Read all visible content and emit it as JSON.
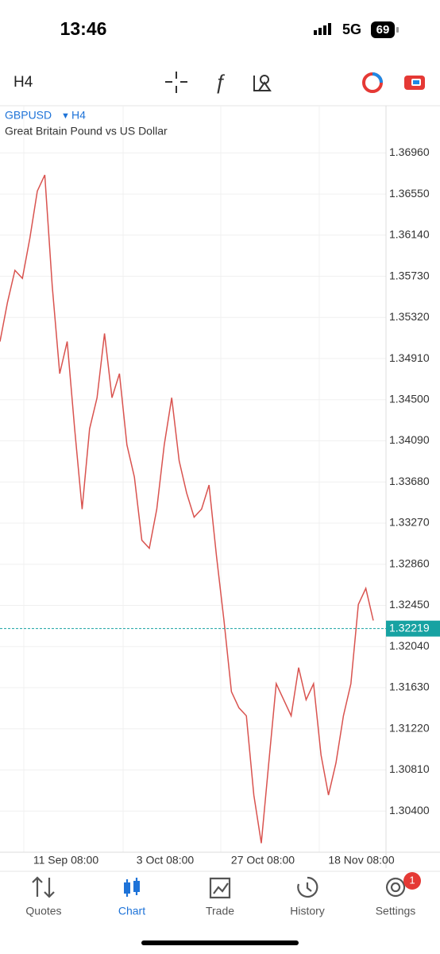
{
  "status_bar": {
    "time": "13:46",
    "network": "5G",
    "battery": "69"
  },
  "toolbar": {
    "timeframe": "H4"
  },
  "chart_data": {
    "type": "line",
    "title": "GBPUSD",
    "timeframe": "H4",
    "subtitle": "Great Britain Pound vs US Dollar",
    "values": [
      1.3508,
      1.3547,
      1.3579,
      1.3571,
      1.3611,
      1.3658,
      1.3674,
      1.3563,
      1.3476,
      1.3508,
      1.3421,
      1.3341,
      1.3421,
      1.3452,
      1.3516,
      1.3452,
      1.3476,
      1.3405,
      1.3373,
      1.331,
      1.3302,
      1.3341,
      1.3405,
      1.3452,
      1.3389,
      1.3357,
      1.3333,
      1.3341,
      1.3365,
      1.3294,
      1.323,
      1.3159,
      1.3143,
      1.3135,
      1.3056,
      1.3008,
      1.3088,
      1.3167,
      1.3151,
      1.3135,
      1.3183,
      1.3151,
      1.3167,
      1.3096,
      1.3056,
      1.3088,
      1.3135,
      1.3167,
      1.3246,
      1.3262,
      1.323
    ],
    "color": "#d9534f",
    "grid": true,
    "ylim": [
      1.2999,
      1.3743
    ],
    "yticks": [
      {
        "value": 1.3696,
        "label": "1.36960"
      },
      {
        "value": 1.3655,
        "label": "1.36550"
      },
      {
        "value": 1.3614,
        "label": "1.36140"
      },
      {
        "value": 1.3573,
        "label": "1.35730"
      },
      {
        "value": 1.3532,
        "label": "1.35320"
      },
      {
        "value": 1.3491,
        "label": "1.34910"
      },
      {
        "value": 1.345,
        "label": "1.34500"
      },
      {
        "value": 1.3409,
        "label": "1.34090"
      },
      {
        "value": 1.3368,
        "label": "1.33680"
      },
      {
        "value": 1.3327,
        "label": "1.33270"
      },
      {
        "value": 1.3286,
        "label": "1.32860"
      },
      {
        "value": 1.3245,
        "label": "1.32450"
      },
      {
        "value": 1.3204,
        "label": "1.32040"
      },
      {
        "value": 1.3163,
        "label": "1.31630"
      },
      {
        "value": 1.3122,
        "label": "1.31220"
      },
      {
        "value": 1.3081,
        "label": "1.30810"
      },
      {
        "value": 1.304,
        "label": "1.30400"
      }
    ],
    "current_price": {
      "value": 1.32219,
      "label": "1.32219"
    },
    "x_labels": [
      "11 Sep 08:00",
      "3 Oct 08:00",
      "27 Oct 08:00",
      "18 Nov 08:00"
    ]
  },
  "nav": {
    "items": [
      "Quotes",
      "Chart",
      "Trade",
      "History",
      "Settings"
    ],
    "active": 1,
    "badge": "1"
  }
}
